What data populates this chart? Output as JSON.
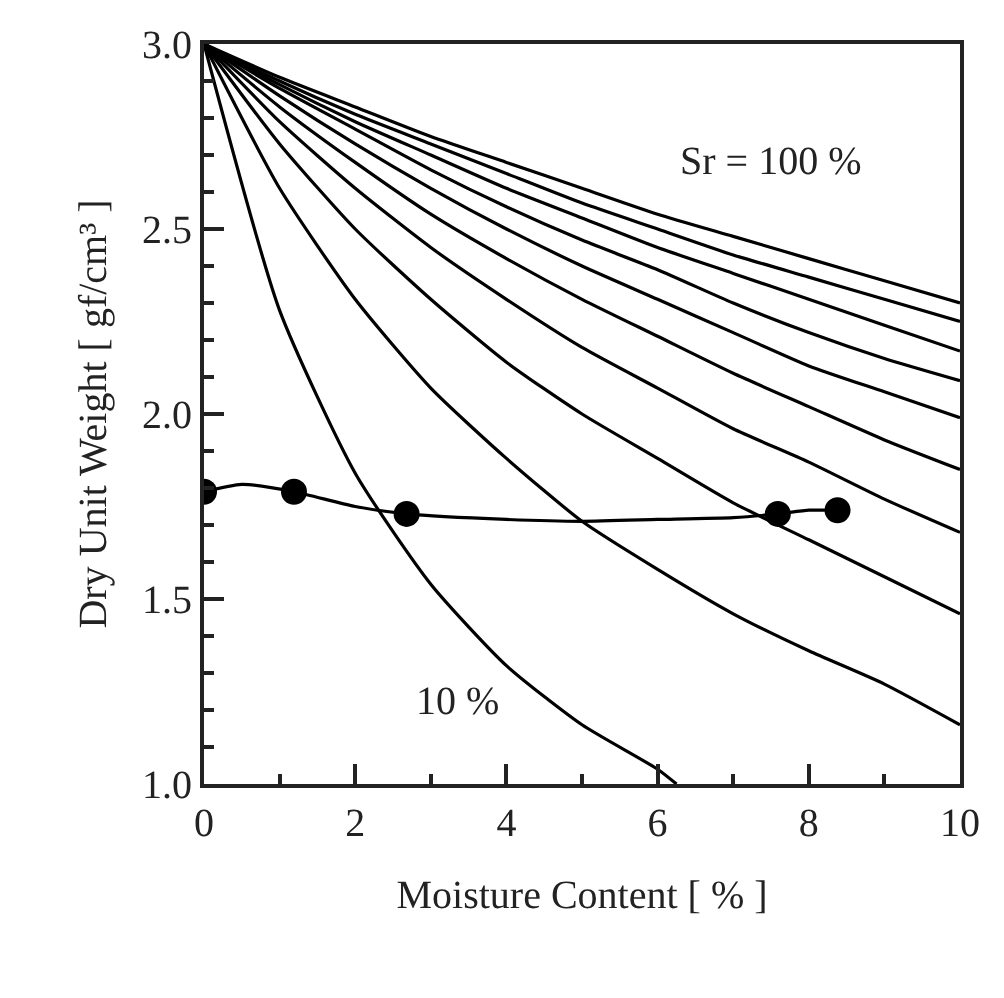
{
  "chart_data": {
    "type": "line",
    "xlabel": "Moisture Content [ % ]",
    "ylabel": "Dry Unit Weight [ gf/cm³ ]",
    "xlim": [
      0,
      10
    ],
    "ylim": [
      1.0,
      3.0
    ],
    "xticks": [
      0,
      {
        "value": 1,
        "label": null
      },
      2,
      {
        "value": 3,
        "label": null
      },
      4,
      {
        "value": 5,
        "label": null
      },
      6,
      {
        "value": 7,
        "label": null
      },
      8,
      {
        "value": 9,
        "label": null
      },
      10
    ],
    "yticks": [
      {
        "value": 1.0,
        "label": "1.0"
      },
      {
        "value": 1.1,
        "label": null
      },
      {
        "value": 1.2,
        "label": null
      },
      {
        "value": 1.3,
        "label": null
      },
      {
        "value": 1.4,
        "label": null
      },
      {
        "value": 1.5,
        "label": "1.5"
      },
      {
        "value": 1.6,
        "label": null
      },
      {
        "value": 1.7,
        "label": null
      },
      {
        "value": 1.8,
        "label": null
      },
      {
        "value": 1.9,
        "label": null
      },
      {
        "value": 2.0,
        "label": "2.0"
      },
      {
        "value": 2.1,
        "label": null
      },
      {
        "value": 2.2,
        "label": null
      },
      {
        "value": 2.3,
        "label": null
      },
      {
        "value": 2.4,
        "label": null
      },
      {
        "value": 2.5,
        "label": "2.5"
      },
      {
        "value": 2.6,
        "label": null
      },
      {
        "value": 2.7,
        "label": null
      },
      {
        "value": 2.8,
        "label": null
      },
      {
        "value": 2.9,
        "label": null
      },
      {
        "value": 3.0,
        "label": "3.0"
      }
    ],
    "marker": "none",
    "line_style": "solid",
    "series": [
      {
        "color": "#000000",
        "x": [
          0,
          1,
          2,
          3,
          4,
          5,
          6,
          6.25
        ],
        "values": [
          3.0,
          2.28,
          1.84,
          1.54,
          1.32,
          1.16,
          1.04,
          1.0
        ]
      },
      {
        "color": "#000000",
        "x": [
          0,
          1,
          2,
          3,
          4,
          5,
          6,
          7,
          8,
          9,
          10
        ],
        "values": [
          3.0,
          2.61,
          2.31,
          2.07,
          1.88,
          1.71,
          1.58,
          1.46,
          1.36,
          1.27,
          1.16
        ]
      },
      {
        "color": "#000000",
        "x": [
          0,
          1,
          2,
          3,
          4,
          5,
          6,
          7,
          8,
          9,
          10
        ],
        "values": [
          3.0,
          2.73,
          2.5,
          2.31,
          2.14,
          2.0,
          1.88,
          1.76,
          1.66,
          1.56,
          1.46
        ]
      },
      {
        "color": "#000000",
        "x": [
          0,
          1,
          2,
          3,
          4,
          5,
          6,
          7,
          8,
          9,
          10
        ],
        "values": [
          3.0,
          2.79,
          2.61,
          2.45,
          2.31,
          2.18,
          2.07,
          1.96,
          1.87,
          1.77,
          1.68
        ]
      },
      {
        "color": "#000000",
        "x": [
          0,
          1,
          2,
          3,
          4,
          5,
          6,
          7,
          8,
          9,
          10
        ],
        "values": [
          3.0,
          2.83,
          2.68,
          2.54,
          2.42,
          2.31,
          2.21,
          2.11,
          2.02,
          1.93,
          1.85
        ]
      },
      {
        "color": "#000000",
        "x": [
          0,
          1,
          2,
          3,
          4,
          5,
          6,
          7,
          8,
          9,
          10
        ],
        "values": [
          3.0,
          2.86,
          2.73,
          2.61,
          2.5,
          2.4,
          2.31,
          2.22,
          2.13,
          2.06,
          1.99
        ]
      },
      {
        "color": "#000000",
        "x": [
          0,
          1,
          2,
          3,
          4,
          5,
          6,
          7,
          8,
          9,
          10
        ],
        "values": [
          3.0,
          2.88,
          2.77,
          2.66,
          2.56,
          2.47,
          2.39,
          2.3,
          2.22,
          2.15,
          2.09
        ]
      },
      {
        "color": "#000000",
        "x": [
          0,
          1,
          2,
          3,
          4,
          5,
          6,
          7,
          8,
          9,
          10
        ],
        "values": [
          3.0,
          2.89,
          2.79,
          2.7,
          2.61,
          2.53,
          2.45,
          2.38,
          2.31,
          2.24,
          2.17
        ]
      },
      {
        "color": "#000000",
        "x": [
          0,
          1,
          2,
          3,
          4,
          5,
          6,
          7,
          8,
          9,
          10
        ],
        "values": [
          3.0,
          2.9,
          2.81,
          2.73,
          2.65,
          2.57,
          2.5,
          2.43,
          2.37,
          2.31,
          2.25
        ]
      },
      {
        "color": "#000000",
        "x": [
          0,
          1,
          2,
          3,
          4,
          5,
          6,
          7,
          8,
          9,
          10
        ],
        "values": [
          3.0,
          2.91,
          2.83,
          2.75,
          2.68,
          2.61,
          2.54,
          2.48,
          2.42,
          2.36,
          2.3
        ]
      },
      {
        "color": "#000000",
        "x": [
          0,
          0.5,
          1.19,
          2,
          2.68,
          4,
          5,
          6,
          7,
          7.59,
          8,
          8.38
        ],
        "values": [
          1.79,
          1.81,
          1.79,
          1.75,
          1.73,
          1.715,
          1.71,
          1.715,
          1.72,
          1.73,
          1.74,
          1.74
        ]
      },
      {
        "type": "scatter",
        "marker": "circle",
        "color": "#000000",
        "x": [
          0,
          1.19,
          2.68,
          7.59,
          8.38
        ],
        "values": [
          1.79,
          1.79,
          1.73,
          1.73,
          1.74
        ]
      }
    ],
    "annotations": [
      "Sr = 100 %",
      "10 %"
    ]
  }
}
